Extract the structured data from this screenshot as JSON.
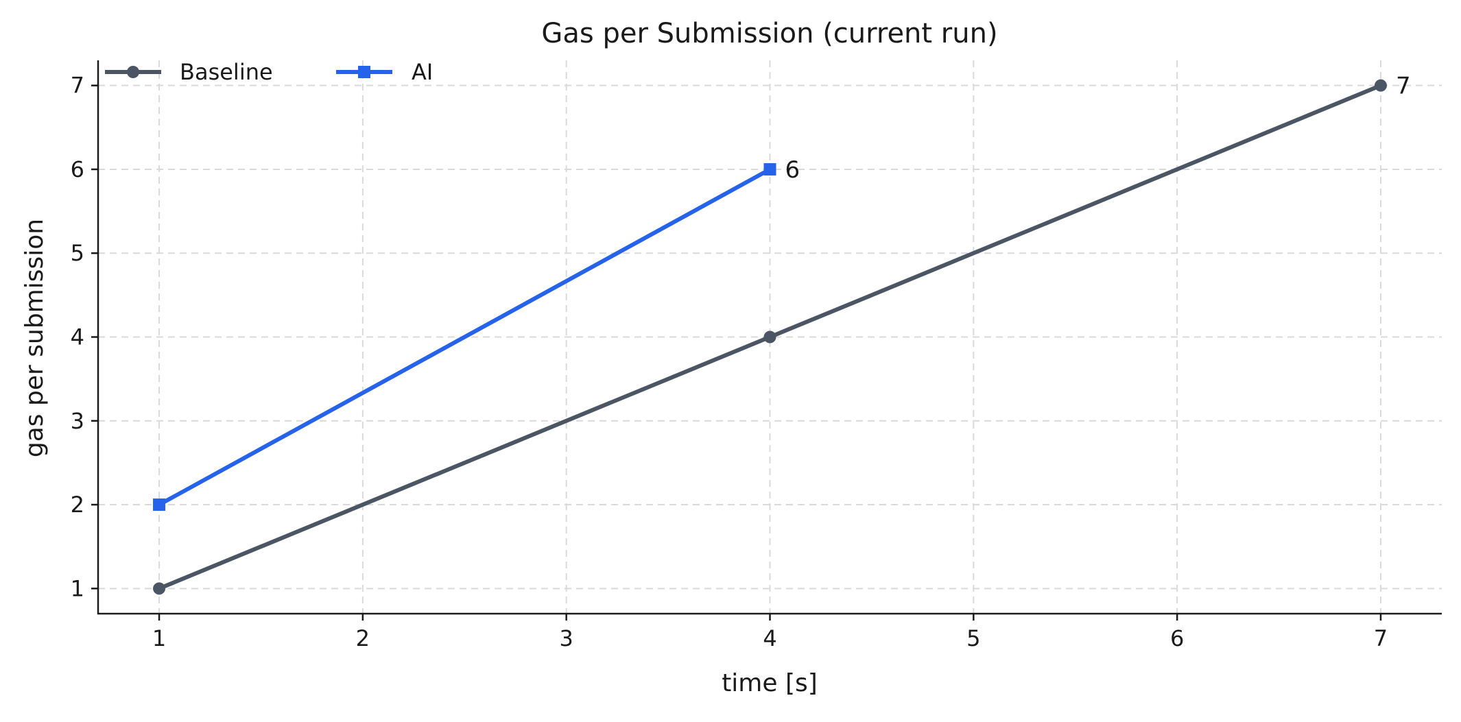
{
  "chart_data": {
    "type": "line",
    "title": "Gas per Submission (current run)",
    "xlabel": "time [s]",
    "ylabel": "gas per submission",
    "xlim": [
      0.7,
      7.3
    ],
    "ylim": [
      0.7,
      7.3
    ],
    "xticks": [
      1,
      2,
      3,
      4,
      5,
      6,
      7
    ],
    "yticks": [
      1,
      2,
      3,
      4,
      5,
      6,
      7
    ],
    "grid": true,
    "legend_position": "top-left",
    "series": [
      {
        "name": "Baseline",
        "color": "#4b5563",
        "marker": "circle",
        "x": [
          1,
          4,
          7
        ],
        "y": [
          1,
          4,
          7
        ],
        "end_label": "7"
      },
      {
        "name": "AI",
        "color": "#2563eb",
        "marker": "square",
        "x": [
          1,
          4
        ],
        "y": [
          2,
          6
        ],
        "end_label": "6"
      }
    ]
  }
}
